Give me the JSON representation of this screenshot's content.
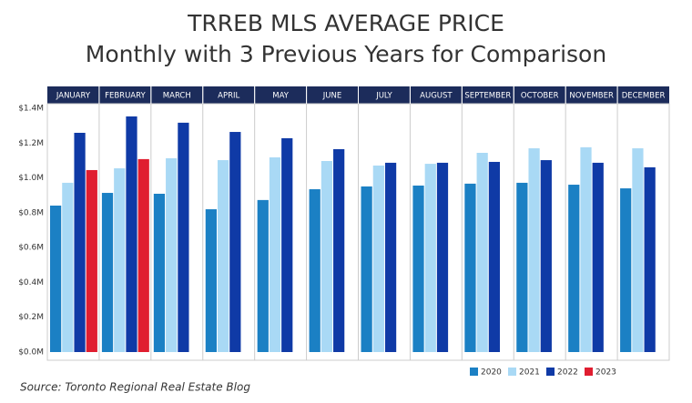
{
  "chart_data": {
    "type": "bar",
    "title": "TRREB MLS AVERAGE PRICE",
    "subtitle": "Monthly with 3 Previous Years for Comparison",
    "source": "Source: Toronto Regional Real Estate Blog",
    "categories": [
      "JANUARY",
      "FEBRUARY",
      "MARCH",
      "APRIL",
      "MAY",
      "JUNE",
      "JULY",
      "AUGUST",
      "SEPTEMBER",
      "OCTOBER",
      "NOVEMBER",
      "DECEMBER"
    ],
    "series": [
      {
        "name": "2020",
        "color": "#1b80c4",
        "values": [
          841000,
          914000,
          909000,
          820000,
          873000,
          935000,
          951000,
          956000,
          967000,
          972000,
          961000,
          940000
        ]
      },
      {
        "name": "2021",
        "color": "#a9d9f5",
        "values": [
          972000,
          1055000,
          1113000,
          1102000,
          1118000,
          1097000,
          1071000,
          1081000,
          1144000,
          1170000,
          1176000,
          1170000
        ]
      },
      {
        "name": "2022",
        "color": "#0f3aa6",
        "values": [
          1259000,
          1353000,
          1317000,
          1264000,
          1228000,
          1165000,
          1087000,
          1087000,
          1092000,
          1102000,
          1087000,
          1061000
        ]
      },
      {
        "name": "2023",
        "color": "#e01e30",
        "values": [
          1045000,
          1108000,
          null,
          null,
          null,
          null,
          null,
          null,
          null,
          null,
          null,
          null
        ]
      }
    ],
    "ylim": [
      0,
      1400000
    ],
    "yticks": [
      {
        "value": 0,
        "label": "$0.0M"
      },
      {
        "value": 200000,
        "label": "$0.2M"
      },
      {
        "value": 400000,
        "label": "$0.4M"
      },
      {
        "value": 600000,
        "label": "$0.6M"
      },
      {
        "value": 800000,
        "label": "$0.8M"
      },
      {
        "value": 1000000,
        "label": "$1.0M"
      },
      {
        "value": 1200000,
        "label": "$1.2M"
      },
      {
        "value": 1400000,
        "label": "$1.4M"
      }
    ],
    "grid": false
  }
}
